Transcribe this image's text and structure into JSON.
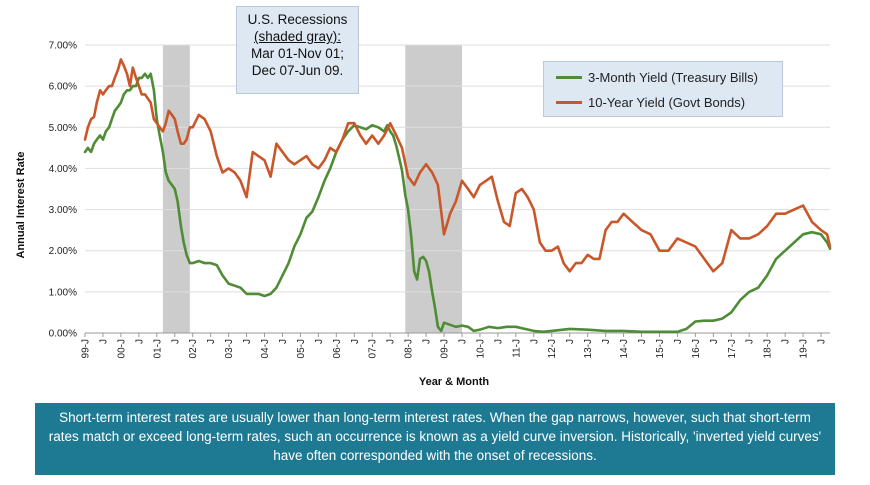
{
  "chart_data": {
    "type": "line",
    "title": "",
    "xlabel": "Year & Month",
    "ylabel": "Annual Interest Rate",
    "ylim": [
      0,
      7
    ],
    "xlim": [
      1999.0,
      2019.75
    ],
    "y_ticks": [
      "0.00%",
      "1.00%",
      "2.00%",
      "3.00%",
      "4.00%",
      "5.00%",
      "6.00%",
      "7.00%"
    ],
    "x_ticks": [
      {
        "label": "99-J",
        "x": 1999.0
      },
      {
        "label": "J",
        "x": 1999.5
      },
      {
        "label": "00-J",
        "x": 2000.0
      },
      {
        "label": "J",
        "x": 2000.5
      },
      {
        "label": "01-J",
        "x": 2001.0
      },
      {
        "label": "J",
        "x": 2001.5
      },
      {
        "label": "02-J",
        "x": 2002.0
      },
      {
        "label": "J",
        "x": 2002.5
      },
      {
        "label": "03-J",
        "x": 2003.0
      },
      {
        "label": "J",
        "x": 2003.5
      },
      {
        "label": "04-J",
        "x": 2004.0
      },
      {
        "label": "J",
        "x": 2004.5
      },
      {
        "label": "05-J",
        "x": 2005.0
      },
      {
        "label": "J",
        "x": 2005.5
      },
      {
        "label": "06-J",
        "x": 2006.0
      },
      {
        "label": "J",
        "x": 2006.5
      },
      {
        "label": "07-J",
        "x": 2007.0
      },
      {
        "label": "J",
        "x": 2007.5
      },
      {
        "label": "08-J",
        "x": 2008.0
      },
      {
        "label": "J",
        "x": 2008.5
      },
      {
        "label": "09-J",
        "x": 2009.0
      },
      {
        "label": "J",
        "x": 2009.5
      },
      {
        "label": "10-J",
        "x": 2010.0
      },
      {
        "label": "J",
        "x": 2010.5
      },
      {
        "label": "11-J",
        "x": 2011.0
      },
      {
        "label": "J",
        "x": 2011.5
      },
      {
        "label": "12-J",
        "x": 2012.0
      },
      {
        "label": "J",
        "x": 2012.5
      },
      {
        "label": "13-J",
        "x": 2013.0
      },
      {
        "label": "J",
        "x": 2013.5
      },
      {
        "label": "14-J",
        "x": 2014.0
      },
      {
        "label": "J",
        "x": 2014.5
      },
      {
        "label": "15-J",
        "x": 2015.0
      },
      {
        "label": "J",
        "x": 2015.5
      },
      {
        "label": "16-J",
        "x": 2016.0
      },
      {
        "label": "J",
        "x": 2016.5
      },
      {
        "label": "17-J",
        "x": 2017.0
      },
      {
        "label": "J",
        "x": 2017.5
      },
      {
        "label": "18-J",
        "x": 2018.0
      },
      {
        "label": "J",
        "x": 2018.5
      },
      {
        "label": "19-J",
        "x": 2019.0
      },
      {
        "label": "J",
        "x": 2019.5
      }
    ],
    "recessions": [
      {
        "label": "Mar 01-Nov 01",
        "start": 2001.17,
        "end": 2001.92
      },
      {
        "label": "Dec 07-Jun 09",
        "start": 2007.92,
        "end": 2009.5
      }
    ],
    "series": [
      {
        "name": "3-Month Yield (Treasury Bills)",
        "color": "#4e8c35",
        "x": [
          1999.0,
          1999.08,
          1999.17,
          1999.25,
          1999.33,
          1999.42,
          1999.5,
          1999.58,
          1999.67,
          1999.75,
          1999.83,
          1999.92,
          2000.0,
          2000.08,
          2000.17,
          2000.25,
          2000.33,
          2000.42,
          2000.5,
          2000.58,
          2000.67,
          2000.75,
          2000.83,
          2000.92,
          2001.0,
          2001.08,
          2001.17,
          2001.25,
          2001.33,
          2001.42,
          2001.5,
          2001.58,
          2001.67,
          2001.75,
          2001.83,
          2001.92,
          2002.0,
          2002.17,
          2002.33,
          2002.5,
          2002.67,
          2002.83,
          2003.0,
          2003.17,
          2003.33,
          2003.5,
          2003.67,
          2003.83,
          2004.0,
          2004.17,
          2004.33,
          2004.5,
          2004.67,
          2004.83,
          2005.0,
          2005.17,
          2005.33,
          2005.5,
          2005.67,
          2005.83,
          2006.0,
          2006.17,
          2006.33,
          2006.5,
          2006.67,
          2006.83,
          2007.0,
          2007.17,
          2007.33,
          2007.42,
          2007.5,
          2007.58,
          2007.67,
          2007.75,
          2007.83,
          2007.92,
          2008.0,
          2008.08,
          2008.17,
          2008.25,
          2008.33,
          2008.42,
          2008.5,
          2008.58,
          2008.67,
          2008.75,
          2008.83,
          2008.92,
          2009.0,
          2009.17,
          2009.33,
          2009.5,
          2009.67,
          2009.83,
          2010.0,
          2010.25,
          2010.5,
          2010.75,
          2011.0,
          2011.25,
          2011.5,
          2011.75,
          2012.0,
          2012.5,
          2013.0,
          2013.5,
          2014.0,
          2014.5,
          2015.0,
          2015.5,
          2015.75,
          2016.0,
          2016.25,
          2016.5,
          2016.75,
          2017.0,
          2017.25,
          2017.5,
          2017.75,
          2018.0,
          2018.25,
          2018.5,
          2018.75,
          2019.0,
          2019.25,
          2019.5,
          2019.67,
          2019.75
        ],
        "values": [
          4.4,
          4.5,
          4.4,
          4.6,
          4.7,
          4.8,
          4.7,
          4.9,
          5.0,
          5.2,
          5.4,
          5.5,
          5.6,
          5.8,
          5.9,
          5.9,
          6.0,
          6.0,
          6.2,
          6.2,
          6.3,
          6.2,
          6.3,
          5.9,
          5.2,
          4.8,
          4.4,
          3.9,
          3.7,
          3.6,
          3.5,
          3.2,
          2.6,
          2.2,
          1.9,
          1.7,
          1.7,
          1.75,
          1.7,
          1.7,
          1.65,
          1.4,
          1.2,
          1.15,
          1.1,
          0.95,
          0.95,
          0.95,
          0.9,
          0.95,
          1.1,
          1.4,
          1.7,
          2.1,
          2.4,
          2.8,
          2.95,
          3.3,
          3.7,
          4.0,
          4.4,
          4.7,
          4.9,
          5.05,
          5.0,
          4.95,
          5.05,
          5.0,
          4.9,
          5.05,
          4.9,
          4.8,
          4.55,
          4.25,
          3.95,
          3.35,
          3.0,
          2.4,
          1.5,
          1.3,
          1.8,
          1.85,
          1.75,
          1.5,
          1.0,
          0.6,
          0.15,
          0.05,
          0.25,
          0.2,
          0.15,
          0.18,
          0.15,
          0.05,
          0.08,
          0.15,
          0.12,
          0.15,
          0.15,
          0.1,
          0.05,
          0.03,
          0.05,
          0.1,
          0.08,
          0.05,
          0.05,
          0.03,
          0.03,
          0.03,
          0.1,
          0.28,
          0.3,
          0.3,
          0.35,
          0.5,
          0.8,
          1.0,
          1.1,
          1.4,
          1.8,
          2.0,
          2.2,
          2.4,
          2.45,
          2.4,
          2.2,
          2.05
        ]
      },
      {
        "name": "10-Year Yield (Govt Bonds)",
        "color": "#c9572a",
        "x": [
          1999.0,
          1999.08,
          1999.17,
          1999.25,
          1999.33,
          1999.42,
          1999.5,
          1999.58,
          1999.67,
          1999.75,
          1999.83,
          1999.92,
          2000.0,
          2000.08,
          2000.17,
          2000.25,
          2000.33,
          2000.42,
          2000.5,
          2000.58,
          2000.67,
          2000.75,
          2000.83,
          2000.92,
          2001.0,
          2001.08,
          2001.17,
          2001.25,
          2001.33,
          2001.42,
          2001.5,
          2001.58,
          2001.67,
          2001.75,
          2001.83,
          2001.92,
          2002.0,
          2002.17,
          2002.33,
          2002.5,
          2002.67,
          2002.83,
          2003.0,
          2003.17,
          2003.33,
          2003.5,
          2003.67,
          2003.83,
          2004.0,
          2004.17,
          2004.33,
          2004.5,
          2004.67,
          2004.83,
          2005.0,
          2005.17,
          2005.33,
          2005.5,
          2005.67,
          2005.83,
          2006.0,
          2006.17,
          2006.33,
          2006.5,
          2006.67,
          2006.83,
          2007.0,
          2007.17,
          2007.33,
          2007.5,
          2007.67,
          2007.83,
          2008.0,
          2008.17,
          2008.33,
          2008.5,
          2008.67,
          2008.83,
          2009.0,
          2009.17,
          2009.33,
          2009.5,
          2009.67,
          2009.83,
          2010.0,
          2010.17,
          2010.33,
          2010.5,
          2010.67,
          2010.83,
          2011.0,
          2011.17,
          2011.33,
          2011.5,
          2011.67,
          2011.83,
          2012.0,
          2012.17,
          2012.33,
          2012.5,
          2012.67,
          2012.83,
          2013.0,
          2013.17,
          2013.33,
          2013.5,
          2013.67,
          2013.83,
          2014.0,
          2014.25,
          2014.5,
          2014.75,
          2015.0,
          2015.25,
          2015.5,
          2015.75,
          2016.0,
          2016.25,
          2016.5,
          2016.75,
          2017.0,
          2017.25,
          2017.5,
          2017.75,
          2018.0,
          2018.25,
          2018.5,
          2018.75,
          2019.0,
          2019.25,
          2019.5,
          2019.67,
          2019.75
        ],
        "values": [
          4.7,
          5.0,
          5.2,
          5.25,
          5.6,
          5.9,
          5.8,
          5.9,
          6.0,
          6.0,
          6.2,
          6.4,
          6.65,
          6.5,
          6.3,
          6.0,
          6.45,
          6.2,
          6.0,
          5.8,
          5.8,
          5.7,
          5.6,
          5.2,
          5.1,
          5.0,
          4.9,
          5.1,
          5.4,
          5.3,
          5.2,
          4.9,
          4.6,
          4.6,
          4.7,
          5.0,
          5.0,
          5.3,
          5.2,
          4.9,
          4.3,
          3.9,
          4.0,
          3.9,
          3.7,
          3.3,
          4.4,
          4.3,
          4.2,
          3.8,
          4.6,
          4.4,
          4.2,
          4.1,
          4.2,
          4.3,
          4.1,
          4.0,
          4.2,
          4.5,
          4.4,
          4.7,
          5.1,
          5.1,
          4.8,
          4.6,
          4.8,
          4.6,
          4.8,
          5.1,
          4.8,
          4.5,
          3.8,
          3.6,
          3.9,
          4.1,
          3.9,
          3.6,
          2.4,
          2.9,
          3.2,
          3.7,
          3.5,
          3.3,
          3.6,
          3.7,
          3.8,
          3.2,
          2.7,
          2.6,
          3.4,
          3.5,
          3.3,
          3.0,
          2.2,
          2.0,
          2.0,
          2.1,
          1.7,
          1.5,
          1.7,
          1.7,
          1.9,
          1.8,
          1.8,
          2.5,
          2.7,
          2.7,
          2.9,
          2.7,
          2.5,
          2.4,
          2.0,
          2.0,
          2.3,
          2.2,
          2.1,
          1.8,
          1.5,
          1.7,
          2.5,
          2.3,
          2.3,
          2.4,
          2.6,
          2.9,
          2.9,
          3.0,
          3.1,
          2.7,
          2.5,
          2.4,
          2.1
        ]
      }
    ]
  },
  "legend": {
    "items": [
      "3-Month Yield (Treasury Bills)",
      "10-Year Yield (Govt Bonds)"
    ]
  },
  "recession_note": {
    "line1": "U.S. Recessions",
    "line2": "(shaded gray):",
    "line3": "Mar 01-Nov 01;",
    "line4": "Dec 07-Jun 09."
  },
  "caption": {
    "text": "Short-term interest rates are usually lower than long-term interest rates. When the gap narrows, however, such that short-term rates match or exceed long-term rates, such an occurrence is known as a yield curve inversion. Historically, 'inverted yield curves' have often corresponded with the onset of recessions."
  }
}
